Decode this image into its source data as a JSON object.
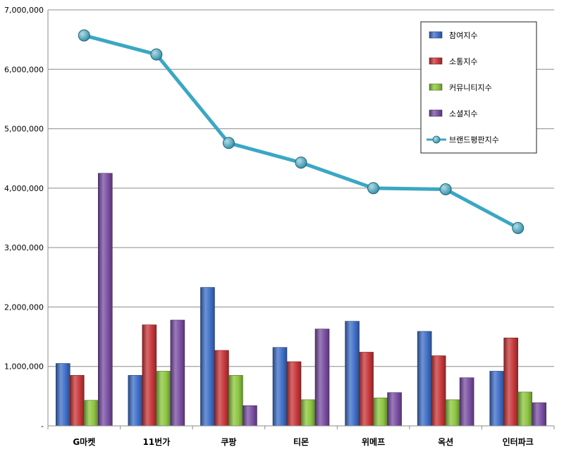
{
  "chart_data": {
    "type": "bar",
    "categories": [
      "G마켓",
      "11번가",
      "쿠팡",
      "티몬",
      "위메프",
      "옥션",
      "인터파크"
    ],
    "series": [
      {
        "name": "참여지수",
        "kind": "bar",
        "color": "#3f6fc8",
        "values": [
          1050000,
          850000,
          2330000,
          1320000,
          1760000,
          1590000,
          920000
        ]
      },
      {
        "name": "소통지수",
        "kind": "bar",
        "color": "#c8373a",
        "values": [
          850000,
          1700000,
          1270000,
          1080000,
          1240000,
          1180000,
          1480000
        ]
      },
      {
        "name": "커뮤니티지수",
        "kind": "bar",
        "color": "#8cc63f",
        "values": [
          430000,
          920000,
          850000,
          440000,
          470000,
          440000,
          570000
        ]
      },
      {
        "name": "소셜지수",
        "kind": "bar",
        "color": "#7a4fa3",
        "values": [
          4250000,
          1780000,
          340000,
          1630000,
          560000,
          810000,
          390000
        ]
      },
      {
        "name": "브랜드평판지수",
        "kind": "line",
        "color": "#3aa7c4",
        "values": [
          6570000,
          6250000,
          4760000,
          4430000,
          4000000,
          3980000,
          3330000
        ]
      }
    ],
    "ylim": [
      0,
      7000000
    ],
    "yticks": [
      "-",
      "1,000,000",
      "2,000,000",
      "3,000,000",
      "4,000,000",
      "5,000,000",
      "6,000,000",
      "7,000,000"
    ],
    "grid": true,
    "legend_position": "top-right"
  }
}
